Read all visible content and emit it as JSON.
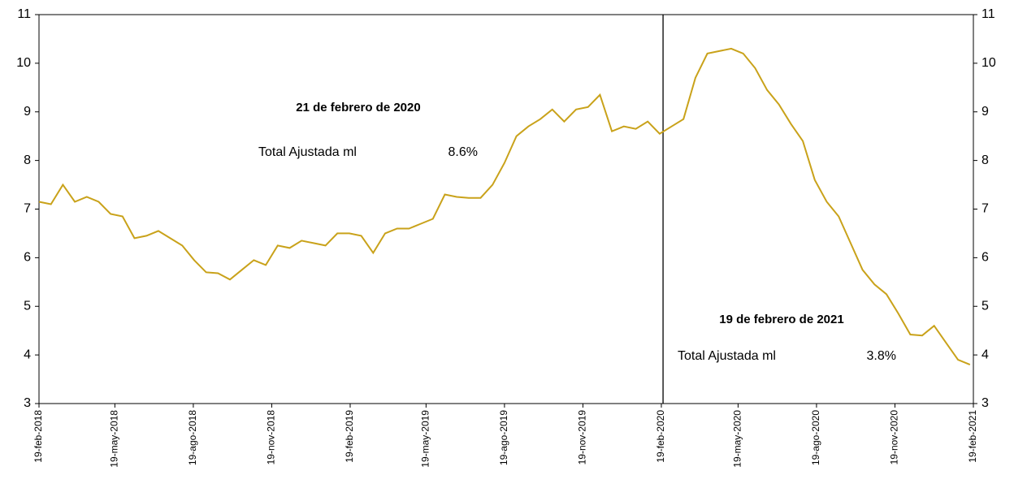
{
  "chart_data": {
    "type": "line",
    "x": [
      "2018-02-19",
      "2018-03-05",
      "2018-03-19",
      "2018-04-02",
      "2018-04-16",
      "2018-04-30",
      "2018-05-14",
      "2018-05-28",
      "2018-06-11",
      "2018-06-25",
      "2018-07-09",
      "2018-07-23",
      "2018-08-06",
      "2018-08-20",
      "2018-09-03",
      "2018-09-17",
      "2018-10-01",
      "2018-10-15",
      "2018-10-29",
      "2018-11-12",
      "2018-11-26",
      "2018-12-10",
      "2018-12-24",
      "2019-01-07",
      "2019-01-21",
      "2019-02-04",
      "2019-02-18",
      "2019-03-04",
      "2019-03-18",
      "2019-04-01",
      "2019-04-15",
      "2019-04-29",
      "2019-05-13",
      "2019-05-27",
      "2019-06-10",
      "2019-06-24",
      "2019-07-08",
      "2019-07-22",
      "2019-08-05",
      "2019-08-19",
      "2019-09-02",
      "2019-09-16",
      "2019-09-30",
      "2019-10-14",
      "2019-10-28",
      "2019-11-11",
      "2019-11-25",
      "2019-12-09",
      "2019-12-23",
      "2020-01-06",
      "2020-01-20",
      "2020-02-03",
      "2020-02-17",
      "2020-03-02",
      "2020-03-16",
      "2020-03-30",
      "2020-04-13",
      "2020-04-27",
      "2020-05-11",
      "2020-05-25",
      "2020-06-08",
      "2020-06-22",
      "2020-07-06",
      "2020-07-20",
      "2020-08-03",
      "2020-08-17",
      "2020-08-31",
      "2020-09-14",
      "2020-09-28",
      "2020-10-12",
      "2020-10-26",
      "2020-11-09",
      "2020-11-23",
      "2020-12-07",
      "2020-12-21",
      "2021-01-04",
      "2021-01-18",
      "2021-02-01",
      "2021-02-15"
    ],
    "series": [
      {
        "name": "Total Ajustada ml",
        "color": "#c9a21a",
        "values": [
          7.15,
          7.1,
          7.5,
          7.15,
          7.25,
          7.15,
          6.9,
          6.85,
          6.4,
          6.45,
          6.55,
          6.4,
          6.25,
          5.95,
          5.7,
          5.68,
          5.55,
          5.75,
          5.95,
          5.85,
          6.25,
          6.2,
          6.35,
          6.3,
          6.25,
          6.5,
          6.5,
          6.45,
          6.1,
          6.5,
          6.6,
          6.6,
          6.7,
          6.8,
          7.3,
          7.25,
          7.23,
          7.23,
          7.5,
          7.95,
          8.5,
          8.7,
          8.85,
          9.05,
          8.8,
          9.05,
          9.1,
          9.35,
          8.6,
          8.7,
          8.65,
          8.8,
          8.55,
          8.7,
          8.85,
          9.7,
          10.2,
          10.25,
          10.3,
          10.2,
          9.9,
          9.45,
          9.15,
          8.75,
          8.4,
          7.6,
          7.15,
          6.85,
          6.3,
          5.75,
          5.45,
          5.25,
          4.85,
          4.42,
          4.4,
          4.6,
          4.25,
          3.9,
          3.8
        ]
      }
    ],
    "xlim": [
      "2018-02-19",
      "2021-02-19"
    ],
    "xticks": [
      {
        "value": "2018-02-19",
        "label": "19-feb-2018"
      },
      {
        "value": "2018-05-19",
        "label": "19-may-2018"
      },
      {
        "value": "2018-08-19",
        "label": "19-ago-2018"
      },
      {
        "value": "2018-11-19",
        "label": "19-nov-2018"
      },
      {
        "value": "2019-02-19",
        "label": "19-feb-2019"
      },
      {
        "value": "2019-05-19",
        "label": "19-may-2019"
      },
      {
        "value": "2019-08-19",
        "label": "19-ago-2019"
      },
      {
        "value": "2019-11-19",
        "label": "19-nov-2019"
      },
      {
        "value": "2020-02-19",
        "label": "19-feb-2020"
      },
      {
        "value": "2020-05-19",
        "label": "19-may-2020"
      },
      {
        "value": "2020-08-19",
        "label": "19-ago-2020"
      },
      {
        "value": "2020-11-19",
        "label": "19-nov-2020"
      },
      {
        "value": "2021-02-19",
        "label": "19-feb-2021"
      }
    ],
    "ylim": [
      3,
      11
    ],
    "yticks": [
      3,
      4,
      5,
      6,
      7,
      8,
      9,
      10,
      11
    ],
    "y2lim": [
      3,
      11
    ],
    "y2ticks": [
      3,
      4,
      5,
      6,
      7,
      8,
      9,
      10,
      11
    ],
    "vline_x": "2020-02-21",
    "annotations": [
      {
        "title": "21 de febrero de 2020",
        "label": "Total Ajustada ml",
        "value": "8.6%"
      },
      {
        "title": "19 de febrero de 2021",
        "label": "Total Ajustada ml",
        "value": "3.8%"
      }
    ]
  }
}
